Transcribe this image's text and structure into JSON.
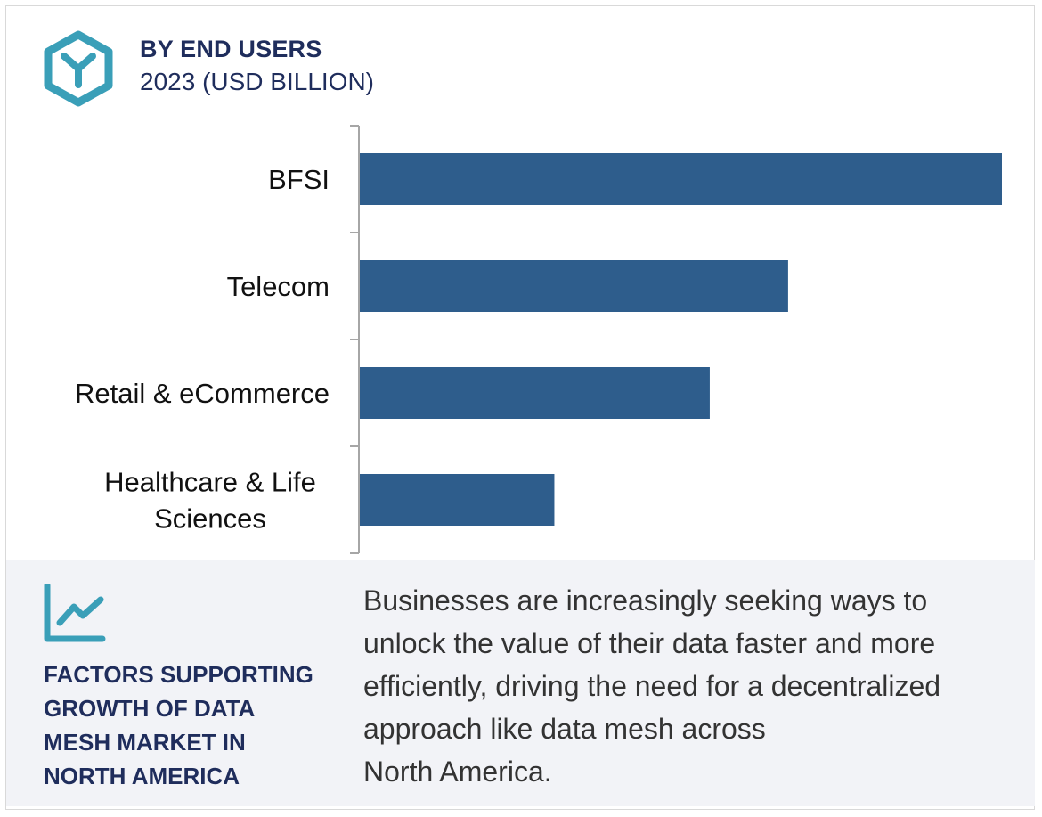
{
  "header": {
    "title": "BY END USERS",
    "subtitle": "2023 (USD BILLION)",
    "icon": "hexagon-y-logo-icon"
  },
  "colors": {
    "bar": "#2e5d8c",
    "accent": "#3a9fb8",
    "navy": "#1f2d5c",
    "panel_bg": "#f2f3f7"
  },
  "chart_data": {
    "type": "bar",
    "orientation": "horizontal",
    "categories": [
      "BFSI",
      "Telecom",
      "Retail & eCommerce",
      "Healthcare & Life Sciences"
    ],
    "category_label_lines": [
      [
        "BFSI"
      ],
      [
        "Telecom"
      ],
      [
        "Retail & eCommerce"
      ],
      [
        "Healthcare & Life",
        "Sciences"
      ]
    ],
    "values": [
      100,
      66.7,
      54.5,
      30.3
    ],
    "title": "BY END USERS",
    "subtitle": "2023 (USD BILLION)",
    "xlabel": "",
    "ylabel": "",
    "xlim": [
      0,
      100
    ],
    "grid": false,
    "legend": "none"
  },
  "panel": {
    "icon": "trend-line-chart-icon",
    "factors_lines": [
      "FACTORS SUPPORTING",
      "GROWTH OF DATA",
      "MESH MARKET IN",
      "NORTH AMERICA"
    ],
    "description_lines": [
      "Businesses are increasingly seeking ways to",
      "unlock the value of their data faster and more",
      "efficiently, driving the need for a decentralized",
      "approach like data mesh across",
      "North America."
    ]
  }
}
